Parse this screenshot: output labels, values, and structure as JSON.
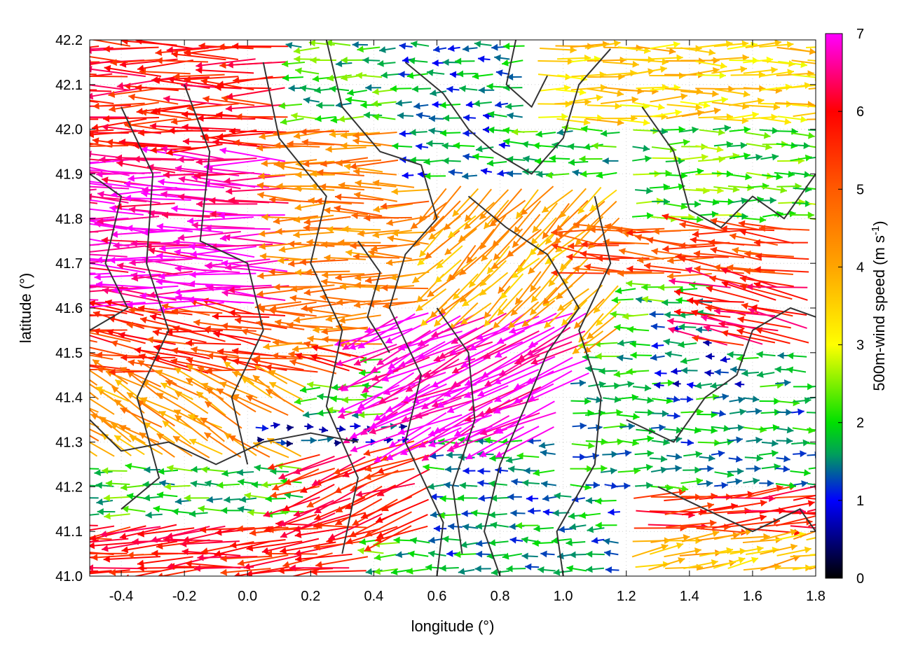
{
  "chart_data": {
    "type": "vector-field",
    "title": "",
    "xlabel": "longitude (°)",
    "ylabel": "latitude (°)",
    "colorbar_label": "500m-wind speed (m s",
    "colorbar_label_sup": "-1",
    "colorbar_label_end": ")",
    "xlim": [
      -0.5,
      1.8
    ],
    "ylim": [
      41.0,
      42.2
    ],
    "speed_range": [
      0,
      7
    ],
    "x_ticks": [
      {
        "v": -0.4,
        "label": "-0.4"
      },
      {
        "v": -0.2,
        "label": "-0.2"
      },
      {
        "v": 0.0,
        "label": "0.0"
      },
      {
        "v": 0.2,
        "label": "0.2"
      },
      {
        "v": 0.4,
        "label": "0.4"
      },
      {
        "v": 0.6,
        "label": "0.6"
      },
      {
        "v": 0.8,
        "label": "0.8"
      },
      {
        "v": 1.0,
        "label": "1.0"
      },
      {
        "v": 1.2,
        "label": "1.2"
      },
      {
        "v": 1.4,
        "label": "1.4"
      },
      {
        "v": 1.6,
        "label": "1.6"
      },
      {
        "v": 1.8,
        "label": "1.8"
      }
    ],
    "y_ticks": [
      {
        "v": 41.0,
        "label": "41.0"
      },
      {
        "v": 41.1,
        "label": "41.1"
      },
      {
        "v": 41.2,
        "label": "41.2"
      },
      {
        "v": 41.3,
        "label": "41.3"
      },
      {
        "v": 41.4,
        "label": "41.4"
      },
      {
        "v": 41.5,
        "label": "41.5"
      },
      {
        "v": 41.6,
        "label": "41.6"
      },
      {
        "v": 41.7,
        "label": "41.7"
      },
      {
        "v": 41.8,
        "label": "41.8"
      },
      {
        "v": 41.9,
        "label": "41.9"
      },
      {
        "v": 42.0,
        "label": "42.0"
      },
      {
        "v": 42.1,
        "label": "42.1"
      },
      {
        "v": 42.2,
        "label": "42.2"
      }
    ],
    "colorbar_ticks": [
      {
        "v": 0,
        "label": "0"
      },
      {
        "v": 1,
        "label": "1"
      },
      {
        "v": 2,
        "label": "2"
      },
      {
        "v": 3,
        "label": "3"
      },
      {
        "v": 4,
        "label": "4"
      },
      {
        "v": 5,
        "label": "5"
      },
      {
        "v": 6,
        "label": "6"
      },
      {
        "v": 7,
        "label": "7"
      }
    ],
    "colormap": [
      {
        "v": 0,
        "color": "#000000"
      },
      {
        "v": 1,
        "color": "#0000ff"
      },
      {
        "v": 1.6,
        "color": "#00a05a"
      },
      {
        "v": 2,
        "color": "#00e000"
      },
      {
        "v": 3,
        "color": "#ffff00"
      },
      {
        "v": 4,
        "color": "#ffa500"
      },
      {
        "v": 5,
        "color": "#ff5a00"
      },
      {
        "v": 6,
        "color": "#ff0000"
      },
      {
        "v": 7,
        "color": "#ff00ff"
      }
    ],
    "grid": true,
    "contour_color": "#333333",
    "regions": [
      {
        "x": [
          -0.5,
          0.15
        ],
        "y": [
          41.75,
          42.2
        ],
        "speed": 5.8,
        "dir": 180
      },
      {
        "x": [
          -0.5,
          0.15
        ],
        "y": [
          41.55,
          41.95
        ],
        "speed": 6.8,
        "dir": 178
      },
      {
        "x": [
          -0.5,
          0.4
        ],
        "y": [
          41.45,
          41.6
        ],
        "speed": 5.5,
        "dir": 172
      },
      {
        "x": [
          0.15,
          0.6
        ],
        "y": [
          41.5,
          42.0
        ],
        "speed": 4.5,
        "dir": 180
      },
      {
        "x": [
          0.6,
          1.2
        ],
        "y": [
          41.55,
          41.9
        ],
        "speed": 4.0,
        "dir": 225
      },
      {
        "x": [
          0.45,
          1.1
        ],
        "y": [
          41.3,
          41.6
        ],
        "speed": 7.0,
        "dir": 205
      },
      {
        "x": [
          -0.5,
          0.2
        ],
        "y": [
          41.25,
          41.45
        ],
        "speed": 4.2,
        "dir": 150
      },
      {
        "x": [
          0.2,
          0.7
        ],
        "y": [
          41.1,
          41.3
        ],
        "speed": 5.8,
        "dir": 200
      },
      {
        "x": [
          -0.5,
          0.4
        ],
        "y": [
          41.0,
          41.12
        ],
        "speed": 5.8,
        "dir": 185
      },
      {
        "x": [
          0.0,
          0.5
        ],
        "y": [
          41.28,
          41.36
        ],
        "speed": 1.0,
        "dir": 0
      },
      {
        "x": [
          0.6,
          1.2
        ],
        "y": [
          41.0,
          41.3
        ],
        "speed": 1.6,
        "dir": 180
      },
      {
        "x": [
          1.2,
          1.8
        ],
        "y": [
          41.0,
          41.12
        ],
        "speed": 3.8,
        "dir": 10
      },
      {
        "x": [
          1.2,
          1.8
        ],
        "y": [
          41.1,
          41.2
        ],
        "speed": 5.8,
        "dir": 5
      },
      {
        "x": [
          1.0,
          1.8
        ],
        "y": [
          41.2,
          41.45
        ],
        "speed": 1.7,
        "dir": 0
      },
      {
        "x": [
          1.3,
          1.6
        ],
        "y": [
          41.42,
          41.6
        ],
        "speed": 1.2,
        "dir": 180
      },
      {
        "x": [
          1.5,
          1.8
        ],
        "y": [
          41.5,
          41.65
        ],
        "speed": 6.0,
        "dir": 170
      },
      {
        "x": [
          1.2,
          1.8
        ],
        "y": [
          41.8,
          42.05
        ],
        "speed": 2.2,
        "dir": 0
      },
      {
        "x": [
          0.9,
          1.8
        ],
        "y": [
          42.0,
          42.2
        ],
        "speed": 3.5,
        "dir": 0
      },
      {
        "x": [
          0.5,
          0.9
        ],
        "y": [
          41.9,
          42.2
        ],
        "speed": 1.5,
        "dir": 180
      },
      {
        "x": [
          1.1,
          1.8
        ],
        "y": [
          41.65,
          41.8
        ],
        "speed": 5.2,
        "dir": 175
      }
    ],
    "contours": [
      [
        [
          -0.4,
          42.05
        ],
        [
          -0.3,
          41.9
        ],
        [
          -0.32,
          41.7
        ],
        [
          -0.25,
          41.55
        ],
        [
          -0.35,
          41.4
        ],
        [
          -0.28,
          41.22
        ],
        [
          -0.4,
          41.15
        ]
      ],
      [
        [
          -0.2,
          42.1
        ],
        [
          -0.12,
          41.95
        ],
        [
          -0.15,
          41.75
        ],
        [
          0.0,
          41.7
        ],
        [
          0.05,
          41.55
        ],
        [
          -0.05,
          41.4
        ],
        [
          0.0,
          41.25
        ]
      ],
      [
        [
          0.05,
          42.15
        ],
        [
          0.1,
          41.98
        ],
        [
          0.25,
          41.85
        ],
        [
          0.2,
          41.7
        ],
        [
          0.3,
          41.55
        ],
        [
          0.25,
          41.38
        ],
        [
          0.35,
          41.22
        ],
        [
          0.3,
          41.05
        ]
      ],
      [
        [
          0.25,
          42.2
        ],
        [
          0.3,
          42.05
        ],
        [
          0.42,
          41.95
        ],
        [
          0.55,
          41.92
        ],
        [
          0.6,
          41.8
        ],
        [
          0.5,
          41.72
        ],
        [
          0.45,
          41.6
        ],
        [
          0.55,
          41.45
        ],
        [
          0.5,
          41.3
        ],
        [
          0.62,
          41.12
        ],
        [
          0.6,
          41.0
        ]
      ],
      [
        [
          0.5,
          42.15
        ],
        [
          0.62,
          42.08
        ],
        [
          0.7,
          42.0
        ],
        [
          0.78,
          41.95
        ],
        [
          0.9,
          41.9
        ],
        [
          1.0,
          41.98
        ],
        [
          1.05,
          42.1
        ],
        [
          1.15,
          42.18
        ]
      ],
      [
        [
          0.7,
          41.85
        ],
        [
          0.82,
          41.78
        ],
        [
          0.95,
          41.72
        ],
        [
          1.05,
          41.6
        ],
        [
          0.95,
          41.5
        ],
        [
          0.88,
          41.38
        ],
        [
          0.8,
          41.25
        ],
        [
          0.75,
          41.1
        ],
        [
          0.8,
          41.0
        ]
      ],
      [
        [
          1.1,
          41.85
        ],
        [
          1.15,
          41.7
        ],
        [
          1.05,
          41.55
        ],
        [
          1.12,
          41.4
        ],
        [
          1.1,
          41.25
        ],
        [
          0.98,
          41.1
        ],
        [
          1.0,
          41.0
        ]
      ],
      [
        [
          1.25,
          42.05
        ],
        [
          1.35,
          41.95
        ],
        [
          1.4,
          41.82
        ],
        [
          1.5,
          41.78
        ],
        [
          1.6,
          41.85
        ],
        [
          1.7,
          41.8
        ],
        [
          1.8,
          41.9
        ]
      ],
      [
        [
          1.2,
          41.35
        ],
        [
          1.35,
          41.3
        ],
        [
          1.45,
          41.4
        ],
        [
          1.55,
          41.45
        ],
        [
          1.6,
          41.55
        ],
        [
          1.72,
          41.6
        ],
        [
          1.8,
          41.58
        ]
      ],
      [
        [
          0.6,
          41.6
        ],
        [
          0.7,
          41.5
        ],
        [
          0.72,
          41.35
        ],
        [
          0.65,
          41.2
        ],
        [
          0.68,
          41.05
        ]
      ],
      [
        [
          -0.5,
          41.35
        ],
        [
          -0.4,
          41.28
        ],
        [
          -0.25,
          41.3
        ],
        [
          -0.1,
          41.25
        ],
        [
          0.05,
          41.3
        ],
        [
          0.2,
          41.32
        ],
        [
          0.35,
          41.3
        ]
      ],
      [
        [
          1.3,
          41.2
        ],
        [
          1.45,
          41.15
        ],
        [
          1.6,
          41.1
        ],
        [
          1.75,
          41.15
        ],
        [
          1.8,
          41.1
        ]
      ],
      [
        [
          0.85,
          42.2
        ],
        [
          0.82,
          42.1
        ],
        [
          0.9,
          42.05
        ],
        [
          0.95,
          42.12
        ]
      ],
      [
        [
          -0.5,
          41.9
        ],
        [
          -0.4,
          41.85
        ],
        [
          -0.45,
          41.7
        ],
        [
          -0.38,
          41.6
        ],
        [
          -0.5,
          41.55
        ]
      ],
      [
        [
          0.35,
          41.75
        ],
        [
          0.42,
          41.68
        ],
        [
          0.38,
          41.58
        ],
        [
          0.45,
          41.5
        ]
      ]
    ]
  }
}
